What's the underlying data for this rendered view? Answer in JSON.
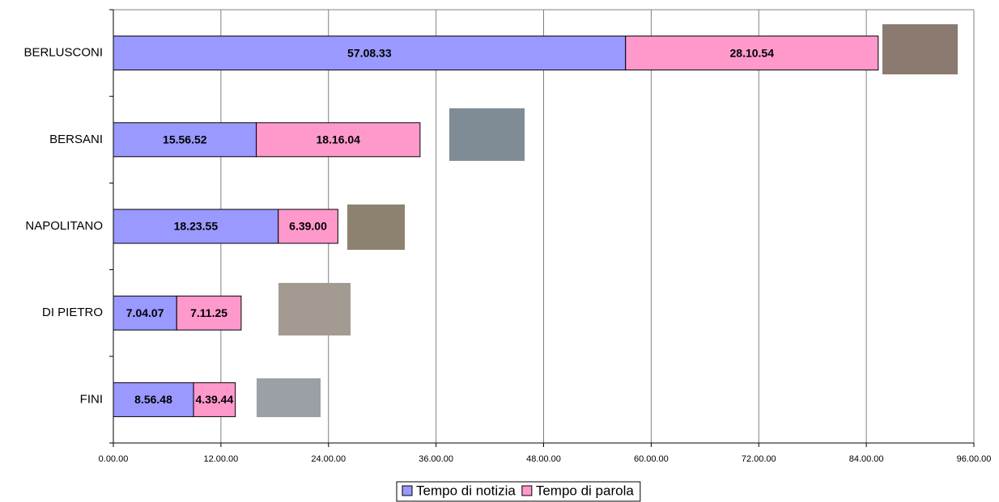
{
  "chart_data": {
    "type": "stacked-bar-horizontal",
    "categories": [
      "BERLUSCONI",
      "BERSANI",
      "NAPOLITANO",
      "DI PIETRO",
      "FINI"
    ],
    "series": [
      {
        "name": "Tempo di notizia",
        "color": "#9999ff",
        "values": [
          57.1425,
          15.9478,
          18.3986,
          7.0686,
          8.9467
        ],
        "value_labels": [
          "57.08.33",
          "15.56.52",
          "18.23.55",
          "7.04.07",
          "8.56.48"
        ]
      },
      {
        "name": "Tempo di parola",
        "color": "#ff99cc",
        "values": [
          28.1817,
          18.2678,
          6.65,
          7.1903,
          4.6622
        ],
        "value_labels": [
          "28.10.54",
          "18.16.04",
          "6.39.00",
          "7.11.25",
          "4.39.44"
        ]
      }
    ],
    "xlim": [
      0,
      96
    ],
    "xticks": [
      {
        "value": 0,
        "label": "0.00.00"
      },
      {
        "value": 12,
        "label": "12.00.00"
      },
      {
        "value": 24,
        "label": "24.00.00"
      },
      {
        "value": 36,
        "label": "36.00.00"
      },
      {
        "value": 48,
        "label": "48.00.00"
      },
      {
        "value": 60,
        "label": "60.00.00"
      },
      {
        "value": 72,
        "label": "72.00.00"
      },
      {
        "value": 84,
        "label": "84.00.00"
      },
      {
        "value": 96,
        "label": "96.00.00"
      }
    ],
    "grid": true,
    "legend": "bottom"
  }
}
